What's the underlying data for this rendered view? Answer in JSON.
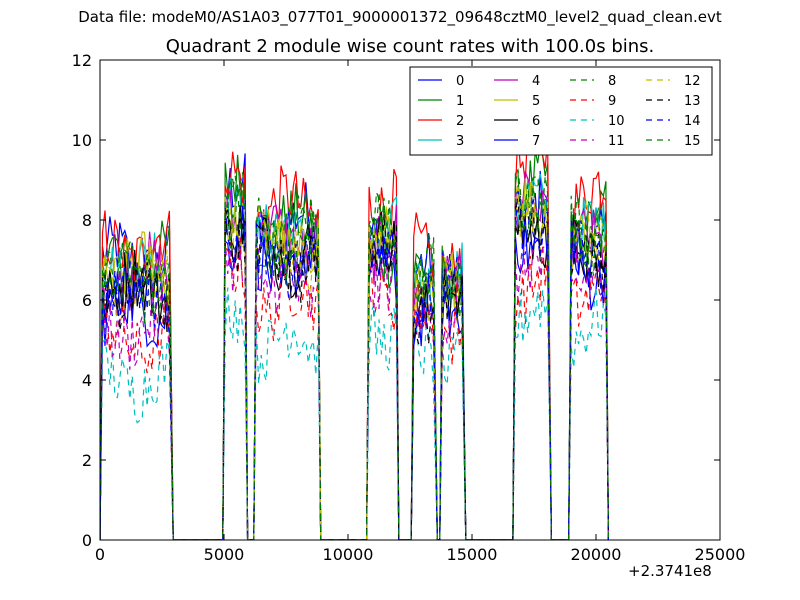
{
  "suptitle": "Data file: modeM0/AS1A03_077T01_9000001372_09648cztM0_level2_quad_clean.evt",
  "chart_data": {
    "type": "line",
    "title": "Quadrant 2 module wise count rates with 100.0s bins.",
    "xlabel": "",
    "ylabel": "",
    "x_offset_label": "+2.3741e8",
    "xlim": [
      0,
      25000
    ],
    "ylim": [
      0,
      12
    ],
    "xticks": [
      0,
      5000,
      10000,
      15000,
      20000,
      25000
    ],
    "yticks": [
      0,
      2,
      4,
      6,
      8,
      10,
      12
    ],
    "grid": false,
    "legend_position": "top-right",
    "legend_columns": 4,
    "segments": [
      [
        100,
        2850
      ],
      [
        5050,
        5850
      ],
      [
        6300,
        8800
      ],
      [
        10850,
        11950
      ],
      [
        12650,
        13500
      ],
      [
        13800,
        14650
      ],
      [
        16750,
        18100
      ],
      [
        19000,
        20400
      ]
    ],
    "x_step": 100,
    "series": [
      {
        "name": "0",
        "color": "#0000ff",
        "dash": "solid",
        "levels": [
          7.0,
          8.6,
          7.9,
          7.0,
          6.6,
          6.6,
          8.4,
          7.4
        ]
      },
      {
        "name": "1",
        "color": "#008000",
        "dash": "solid",
        "levels": [
          7.0,
          8.7,
          7.8,
          7.4,
          6.5,
          6.5,
          8.8,
          7.9
        ]
      },
      {
        "name": "2",
        "color": "#ff0000",
        "dash": "solid",
        "levels": [
          7.3,
          9.0,
          8.3,
          8.6,
          7.1,
          7.0,
          9.5,
          8.6
        ]
      },
      {
        "name": "3",
        "color": "#00bfbf",
        "dash": "solid",
        "levels": [
          6.9,
          8.3,
          7.6,
          7.6,
          6.5,
          6.4,
          8.3,
          7.6
        ]
      },
      {
        "name": "4",
        "color": "#bf00bf",
        "dash": "solid",
        "levels": [
          6.6,
          8.2,
          7.5,
          7.4,
          6.1,
          6.3,
          8.1,
          7.3
        ]
      },
      {
        "name": "5",
        "color": "#bfbf00",
        "dash": "solid",
        "levels": [
          6.7,
          8.1,
          7.4,
          7.3,
          6.2,
          6.2,
          8.4,
          7.5
        ]
      },
      {
        "name": "6",
        "color": "#000000",
        "dash": "solid",
        "levels": [
          6.3,
          7.9,
          7.2,
          7.2,
          5.8,
          5.9,
          7.8,
          7.1
        ]
      },
      {
        "name": "7",
        "color": "#0000ff",
        "dash": "solid",
        "levels": [
          5.8,
          7.5,
          6.8,
          7.0,
          5.6,
          5.6,
          7.6,
          6.8
        ]
      },
      {
        "name": "8",
        "color": "#008000",
        "dash": "dashed",
        "levels": [
          6.4,
          8.4,
          7.7,
          8.0,
          6.6,
          6.6,
          8.5,
          7.8
        ]
      },
      {
        "name": "9",
        "color": "#ff0000",
        "dash": "dashed",
        "levels": [
          5.0,
          6.5,
          6.0,
          6.3,
          5.4,
          5.4,
          6.4,
          6.2
        ]
      },
      {
        "name": "10",
        "color": "#00bfbf",
        "dash": "dashed",
        "levels": [
          4.0,
          5.5,
          5.0,
          5.3,
          4.5,
          4.6,
          5.6,
          5.3
        ]
      },
      {
        "name": "11",
        "color": "#bf00bf",
        "dash": "dashed",
        "levels": [
          5.3,
          6.8,
          6.2,
          6.6,
          5.6,
          5.8,
          6.6,
          6.3
        ]
      },
      {
        "name": "12",
        "color": "#bfbf00",
        "dash": "dashed",
        "levels": [
          6.5,
          8.1,
          7.3,
          7.6,
          6.4,
          6.3,
          8.0,
          7.4
        ]
      },
      {
        "name": "13",
        "color": "#000000",
        "dash": "dashed",
        "levels": [
          6.1,
          7.8,
          7.0,
          7.2,
          6.0,
          6.0,
          7.6,
          7.0
        ]
      },
      {
        "name": "14",
        "color": "#0000ff",
        "dash": "dashed",
        "levels": [
          6.2,
          7.9,
          7.1,
          7.3,
          6.1,
          6.1,
          7.8,
          7.2
        ]
      },
      {
        "name": "15",
        "color": "#008000",
        "dash": "dashed",
        "levels": [
          6.6,
          8.3,
          7.5,
          7.8,
          6.5,
          6.4,
          8.6,
          7.7
        ]
      }
    ]
  }
}
